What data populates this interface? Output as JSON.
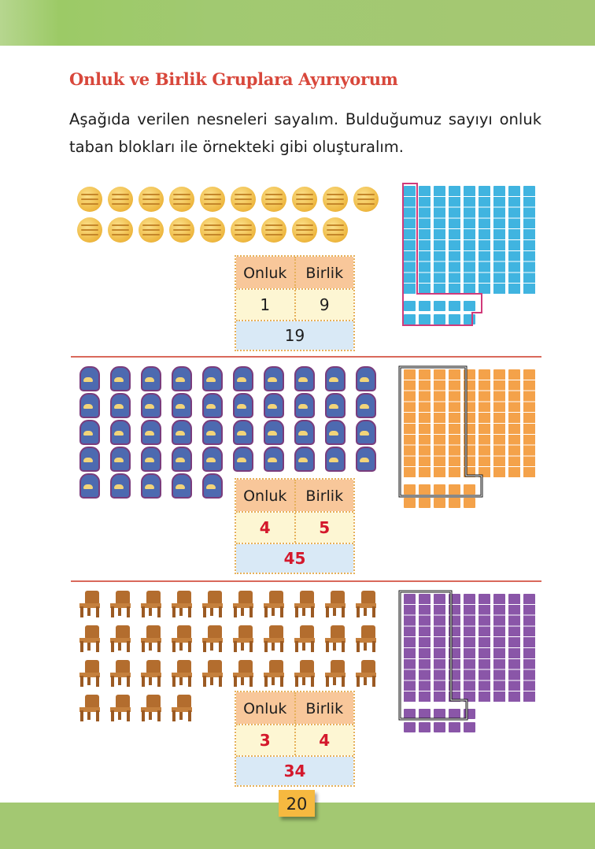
{
  "page": {
    "title": "Onluk ve Birlik Gruplara Ayırıyorum",
    "instruction": "Aşağıda verilen nesneleri sayalım. Bulduğumuz sayıyı onluk taban blokları ile örnekteki gibi oluşturalım.",
    "page_number": "20",
    "colors": {
      "title": "#d8473b",
      "answer_red": "#d4182c",
      "header_band": "#a3c872",
      "table_head": "#f8c79a",
      "table_values": "#fdf6d3",
      "table_total": "#d9e9f6"
    }
  },
  "table_labels": {
    "tens": "Onluk",
    "ones": "Birlik"
  },
  "sections": [
    {
      "object": "volleyball-icon",
      "count": 19,
      "tens": "1",
      "ones": "9",
      "total": "19",
      "block_color": "#40b4e0",
      "outline_color": "#d13a7a",
      "blocks": {
        "rods": 9,
        "units": 10
      }
    },
    {
      "object": "backpack-icon",
      "count": 45,
      "tens": "4",
      "ones": "5",
      "total": "45",
      "block_color": "#f4a24a",
      "outline_color": "#111111",
      "blocks": {
        "rods": 9,
        "units": 10
      }
    },
    {
      "object": "chair-icon",
      "count": 34,
      "tens": "3",
      "ones": "4",
      "total": "34",
      "block_color": "#8a56a8",
      "outline_color": "#111111",
      "blocks": {
        "rods": 9,
        "units": 10
      }
    }
  ]
}
